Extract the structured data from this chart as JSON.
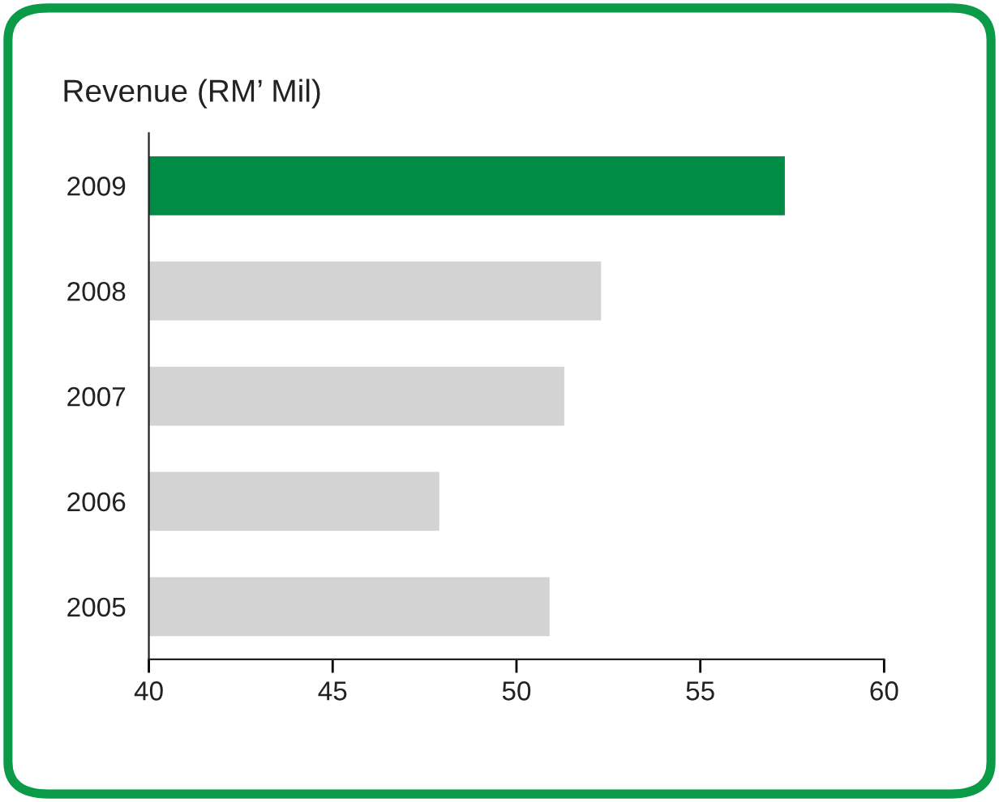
{
  "chart_data": {
    "type": "bar",
    "orientation": "horizontal",
    "title": "Revenue (RM’ Mil)",
    "categories": [
      "2009",
      "2008",
      "2007",
      "2006",
      "2005"
    ],
    "values": [
      57.3,
      52.3,
      51.3,
      47.9,
      50.9
    ],
    "colors": [
      "#008c45",
      "#d3d3d4",
      "#d3d3d4",
      "#d3d3d4",
      "#d3d3d4"
    ],
    "xlim": [
      40,
      60
    ],
    "xticks": [
      40,
      45,
      50,
      55,
      60
    ],
    "grid": false,
    "legend": false
  }
}
